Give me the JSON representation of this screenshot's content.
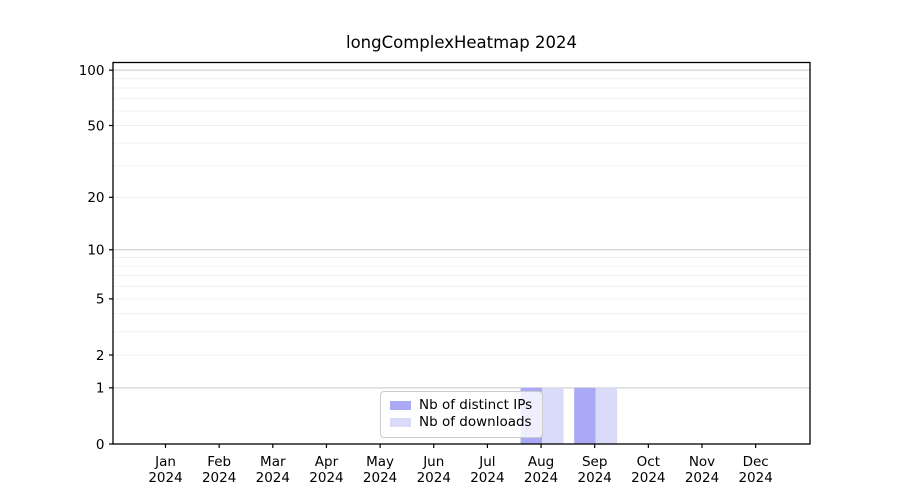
{
  "chart_data": {
    "type": "bar",
    "title": "longComplexHeatmap 2024",
    "categories": [
      "Jan 2024",
      "Feb 2024",
      "Mar 2024",
      "Apr 2024",
      "May 2024",
      "Jun 2024",
      "Jul 2024",
      "Aug 2024",
      "Sep 2024",
      "Oct 2024",
      "Nov 2024",
      "Dec 2024"
    ],
    "x_ticks": [
      {
        "month": "Jan",
        "year": "2024"
      },
      {
        "month": "Feb",
        "year": "2024"
      },
      {
        "month": "Mar",
        "year": "2024"
      },
      {
        "month": "Apr",
        "year": "2024"
      },
      {
        "month": "May",
        "year": "2024"
      },
      {
        "month": "Jun",
        "year": "2024"
      },
      {
        "month": "Jul",
        "year": "2024"
      },
      {
        "month": "Aug",
        "year": "2024"
      },
      {
        "month": "Sep",
        "year": "2024"
      },
      {
        "month": "Oct",
        "year": "2024"
      },
      {
        "month": "Nov",
        "year": "2024"
      },
      {
        "month": "Dec",
        "year": "2024"
      }
    ],
    "series": [
      {
        "name": "Nb of distinct IPs",
        "color": "#a9a9f5",
        "values": [
          0,
          0,
          0,
          0,
          0,
          0,
          0,
          1,
          1,
          0,
          0,
          0
        ]
      },
      {
        "name": "Nb of downloads",
        "color": "#dadaf9",
        "values": [
          0,
          0,
          0,
          0,
          0,
          0,
          0,
          1,
          1,
          0,
          0,
          0
        ]
      }
    ],
    "y_axis": {
      "scale": "log1p",
      "tick_values": [
        0,
        1,
        2,
        5,
        10,
        20,
        50,
        100
      ],
      "tick_labels": [
        "0",
        "1",
        "2",
        "5",
        "10",
        "20",
        "50",
        "100"
      ],
      "major_grid_values": [
        1,
        10,
        100
      ],
      "minor_grid_values": [
        2,
        3,
        4,
        5,
        6,
        7,
        8,
        9,
        20,
        30,
        40,
        50,
        60,
        70,
        80,
        90
      ],
      "ylim": [
        0,
        110
      ],
      "grid": "on"
    },
    "legend": {
      "position": "lower center"
    },
    "colors": {
      "major_grid": "#c9c9c9",
      "minor_grid": "#f0f0f0",
      "spine": "#000000",
      "text": "#000000",
      "legend_border": "#cccccc"
    }
  }
}
